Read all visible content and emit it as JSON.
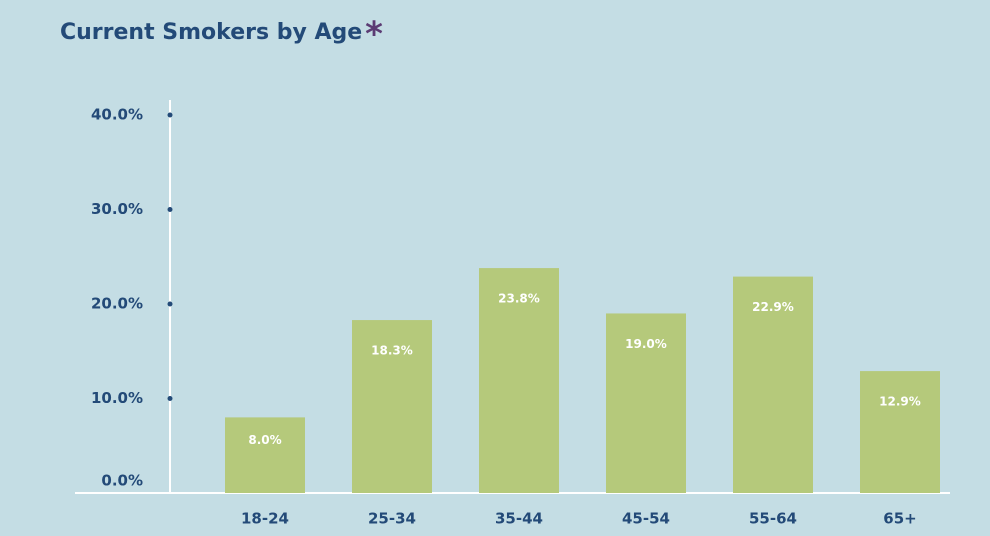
{
  "chart_data": {
    "type": "bar",
    "title": "Current Smokers by Age",
    "title_mark": "*",
    "categories": [
      "18-24",
      "25-34",
      "35-44",
      "45-54",
      "55-64",
      "65+"
    ],
    "values": [
      8.0,
      18.3,
      23.8,
      19.0,
      22.9,
      12.9
    ],
    "value_labels": [
      "8.0%",
      "18.3%",
      "23.8%",
      "19.0%",
      "22.9%",
      "12.9%"
    ],
    "color": "#b5c97b",
    "ylim": [
      0,
      40
    ],
    "yticks": [
      {
        "value": 0,
        "label": "0.0%"
      },
      {
        "value": 10,
        "label": "10.0%"
      },
      {
        "value": 20,
        "label": "20.0%"
      },
      {
        "value": 30,
        "label": "30.0%"
      },
      {
        "value": 40,
        "label": "40.0%"
      }
    ],
    "grid": false
  }
}
